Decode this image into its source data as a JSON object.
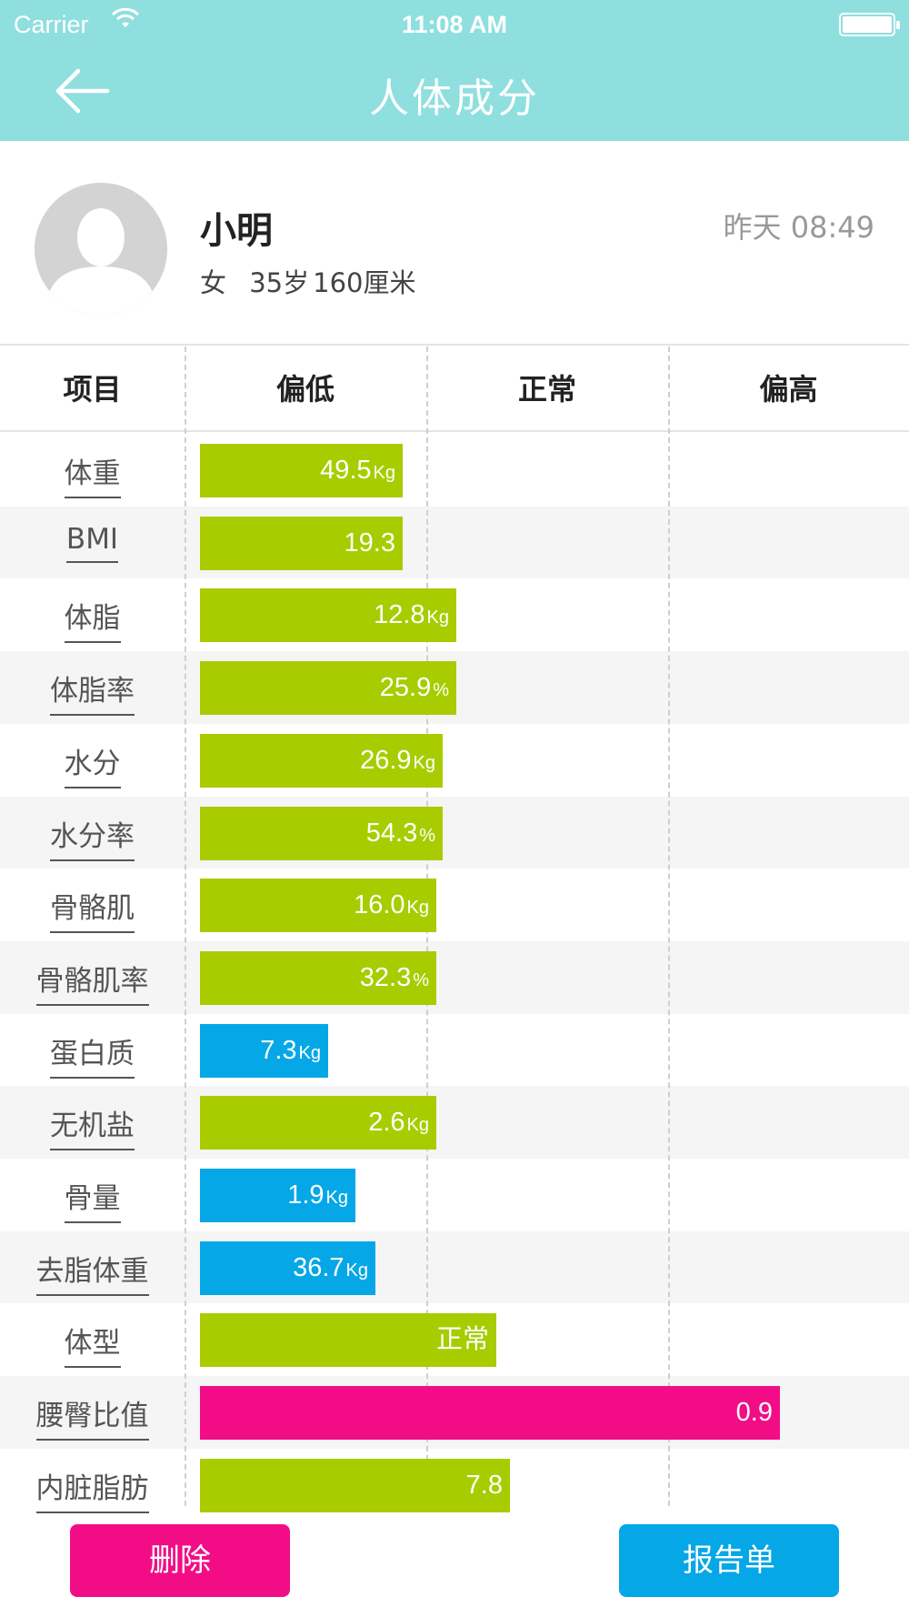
{
  "status_bar": {
    "carrier": "Carrier",
    "time": "11:08 AM"
  },
  "nav": {
    "title": "人体成分"
  },
  "profile": {
    "name": "小明",
    "gender": "女",
    "age": "35岁",
    "height": "160厘米",
    "timestamp": "昨天 08:49"
  },
  "table": {
    "headers": [
      "项目",
      "偏低",
      "正常",
      "偏高"
    ],
    "rows": [
      {
        "label": "体重",
        "value": "49.5",
        "unit": "Kg",
        "color": "#a8cc00",
        "level": 0.3
      },
      {
        "label": "BMI",
        "value": "19.3",
        "unit": "",
        "color": "#a8cc00",
        "level": 0.3
      },
      {
        "label": "体脂",
        "value": "12.8",
        "unit": "Kg",
        "color": "#a8cc00",
        "level": 0.38
      },
      {
        "label": "体脂率",
        "value": "25.9",
        "unit": "%",
        "color": "#a8cc00",
        "level": 0.38
      },
      {
        "label": "水分",
        "value": "26.9",
        "unit": "Kg",
        "color": "#a8cc00",
        "level": 0.36
      },
      {
        "label": "水分率",
        "value": "54.3",
        "unit": "%",
        "color": "#a8cc00",
        "level": 0.36
      },
      {
        "label": "骨骼肌",
        "value": "16.0",
        "unit": "Kg",
        "color": "#a8cc00",
        "level": 0.35
      },
      {
        "label": "骨骼肌率",
        "value": "32.3",
        "unit": "%",
        "color": "#a8cc00",
        "level": 0.35
      },
      {
        "label": "蛋白质",
        "value": "7.3",
        "unit": "Kg",
        "color": "#06a7e6",
        "level": 0.19
      },
      {
        "label": "无机盐",
        "value": "2.6",
        "unit": "Kg",
        "color": "#a8cc00",
        "level": 0.35
      },
      {
        "label": "骨量",
        "value": "1.9",
        "unit": "Kg",
        "color": "#06a7e6",
        "level": 0.23
      },
      {
        "label": "去脂体重",
        "value": "36.7",
        "unit": "Kg",
        "color": "#06a7e6",
        "level": 0.26
      },
      {
        "label": "体型",
        "value": "正常",
        "unit": "",
        "color": "#a8cc00",
        "level": 0.44
      },
      {
        "label": "腰臀比值",
        "value": "0.9",
        "unit": "",
        "color": "#f20d86",
        "level": 0.86
      },
      {
        "label": "内脏脂肪",
        "value": "7.8",
        "unit": "",
        "color": "#a8cc00",
        "level": 0.46
      }
    ]
  },
  "buttons": {
    "delete": "删除",
    "report": "报告单"
  }
}
